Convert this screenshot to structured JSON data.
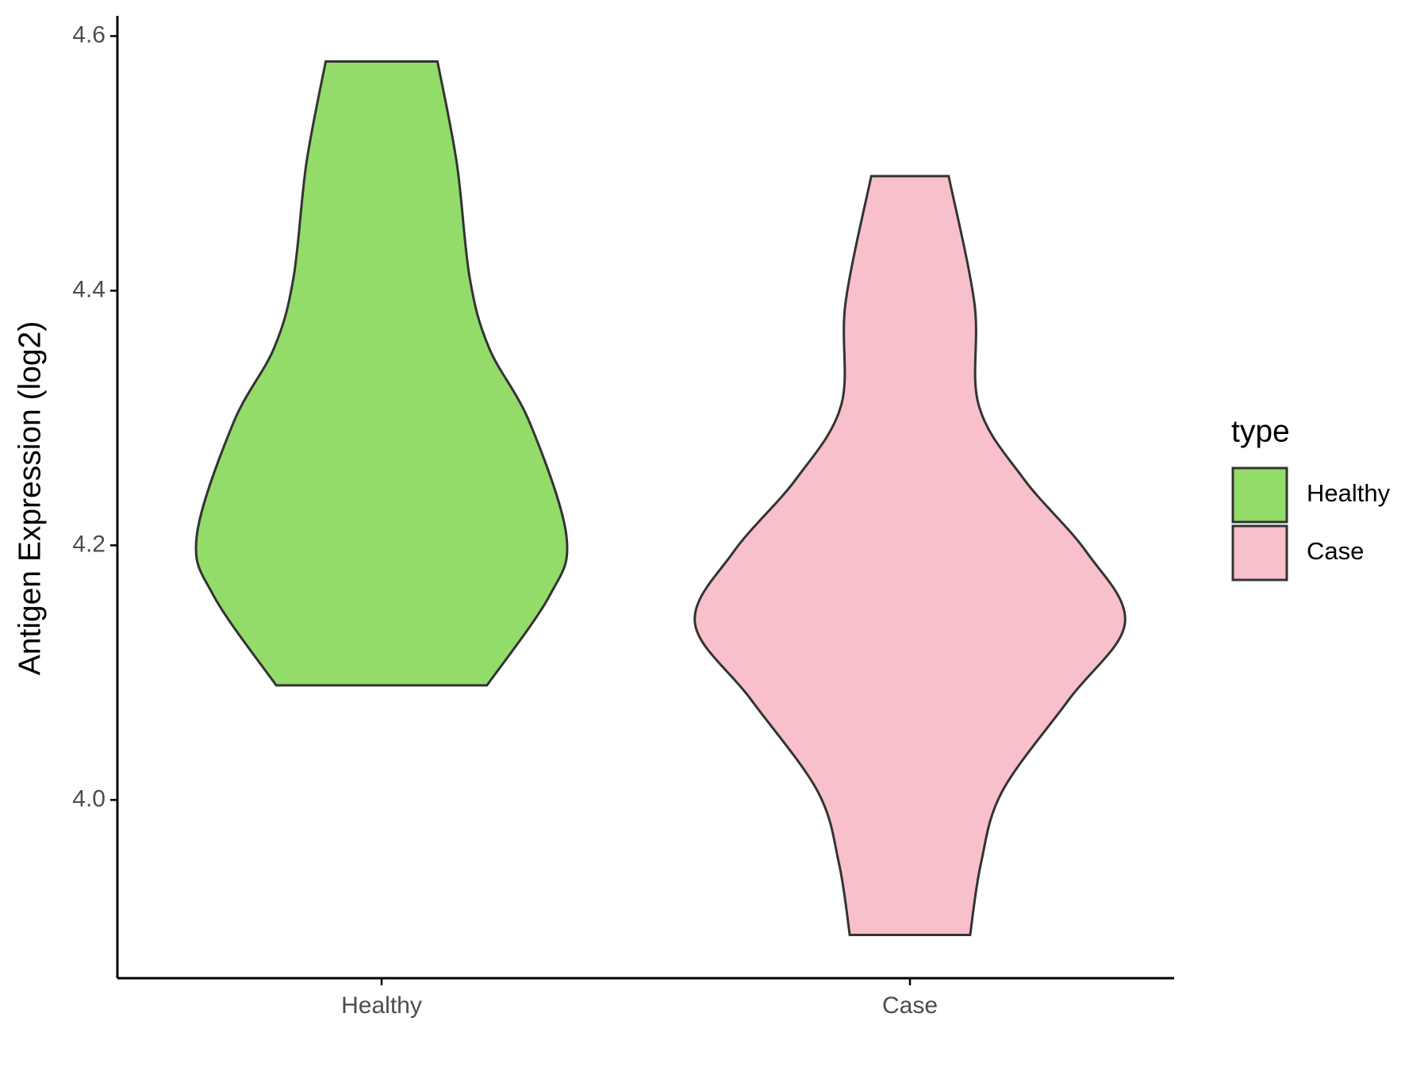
{
  "chart_data": {
    "type": "violin",
    "y_label": "Antigen Expression (log2)",
    "categories": [
      "Healthy",
      "Case"
    ],
    "legend_title": "type",
    "ylim": [
      3.86,
      4.614
    ],
    "yticks": [
      {
        "value": 4,
        "label": "4.0"
      },
      4.2,
      4.4,
      4.6
    ],
    "series": [
      {
        "name": "Healthy",
        "color": "#93dc6a",
        "y": [
          4.58,
          4.5,
          4.41,
          4.355,
          4.296,
          4.207,
          4.16,
          4.09
        ],
        "density": [
          0.26,
          0.35,
          0.41,
          0.5,
          0.69,
          0.86,
          0.78,
          0.49
        ]
      },
      {
        "name": "Case",
        "color": "#f7c0cb",
        "y": [
          4.49,
          4.39,
          4.31,
          4.252,
          4.195,
          4.139,
          4.079,
          4.007,
          3.95,
          3.894
        ],
        "density": [
          0.18,
          0.3,
          0.32,
          0.53,
          0.82,
          1.0,
          0.74,
          0.43,
          0.33,
          0.28
        ]
      }
    ]
  }
}
